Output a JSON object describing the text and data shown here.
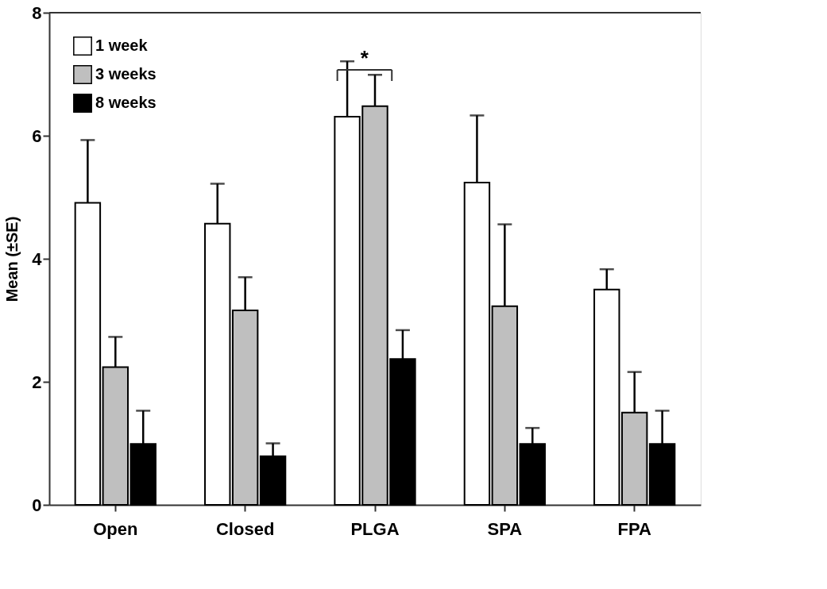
{
  "chart_data": {
    "type": "bar",
    "ylabel": "Mean (±SE)",
    "categories": [
      "Open",
      "Closed",
      "PLGA",
      "SPA",
      "FPA"
    ],
    "series": [
      {
        "name": "1 week",
        "color": "#ffffff",
        "values": [
          4.91,
          4.57,
          6.31,
          5.24,
          3.5
        ],
        "errors": [
          [
            4.91,
            5.93
          ],
          [
            4.57,
            5.22
          ],
          [
            6.31,
            7.21
          ],
          [
            5.24,
            6.33
          ],
          [
            3.5,
            3.83
          ]
        ]
      },
      {
        "name": "3 weeks",
        "color": "#bfbfbf",
        "values": [
          2.24,
          3.16,
          6.48,
          3.23,
          1.5
        ],
        "errors": [
          [
            2.24,
            2.73
          ],
          [
            3.16,
            3.7
          ],
          [
            6.48,
            6.99
          ],
          [
            3.23,
            4.56
          ],
          [
            1.5,
            2.16
          ]
        ]
      },
      {
        "name": "8 weeks",
        "color": "#000000",
        "values": [
          0.99,
          0.79,
          2.37,
          0.99,
          0.99
        ],
        "errors": [
          [
            0.99,
            1.53
          ],
          [
            0.79,
            1.0
          ],
          [
            2.37,
            2.84
          ],
          [
            0.99,
            1.25
          ],
          [
            0.99,
            1.53
          ]
        ]
      }
    ],
    "ylim": [
      0,
      8
    ],
    "yticks": [
      0,
      2,
      4,
      6,
      8
    ],
    "grid": false,
    "legend": "top left",
    "annotations": [
      "*"
    ]
  }
}
